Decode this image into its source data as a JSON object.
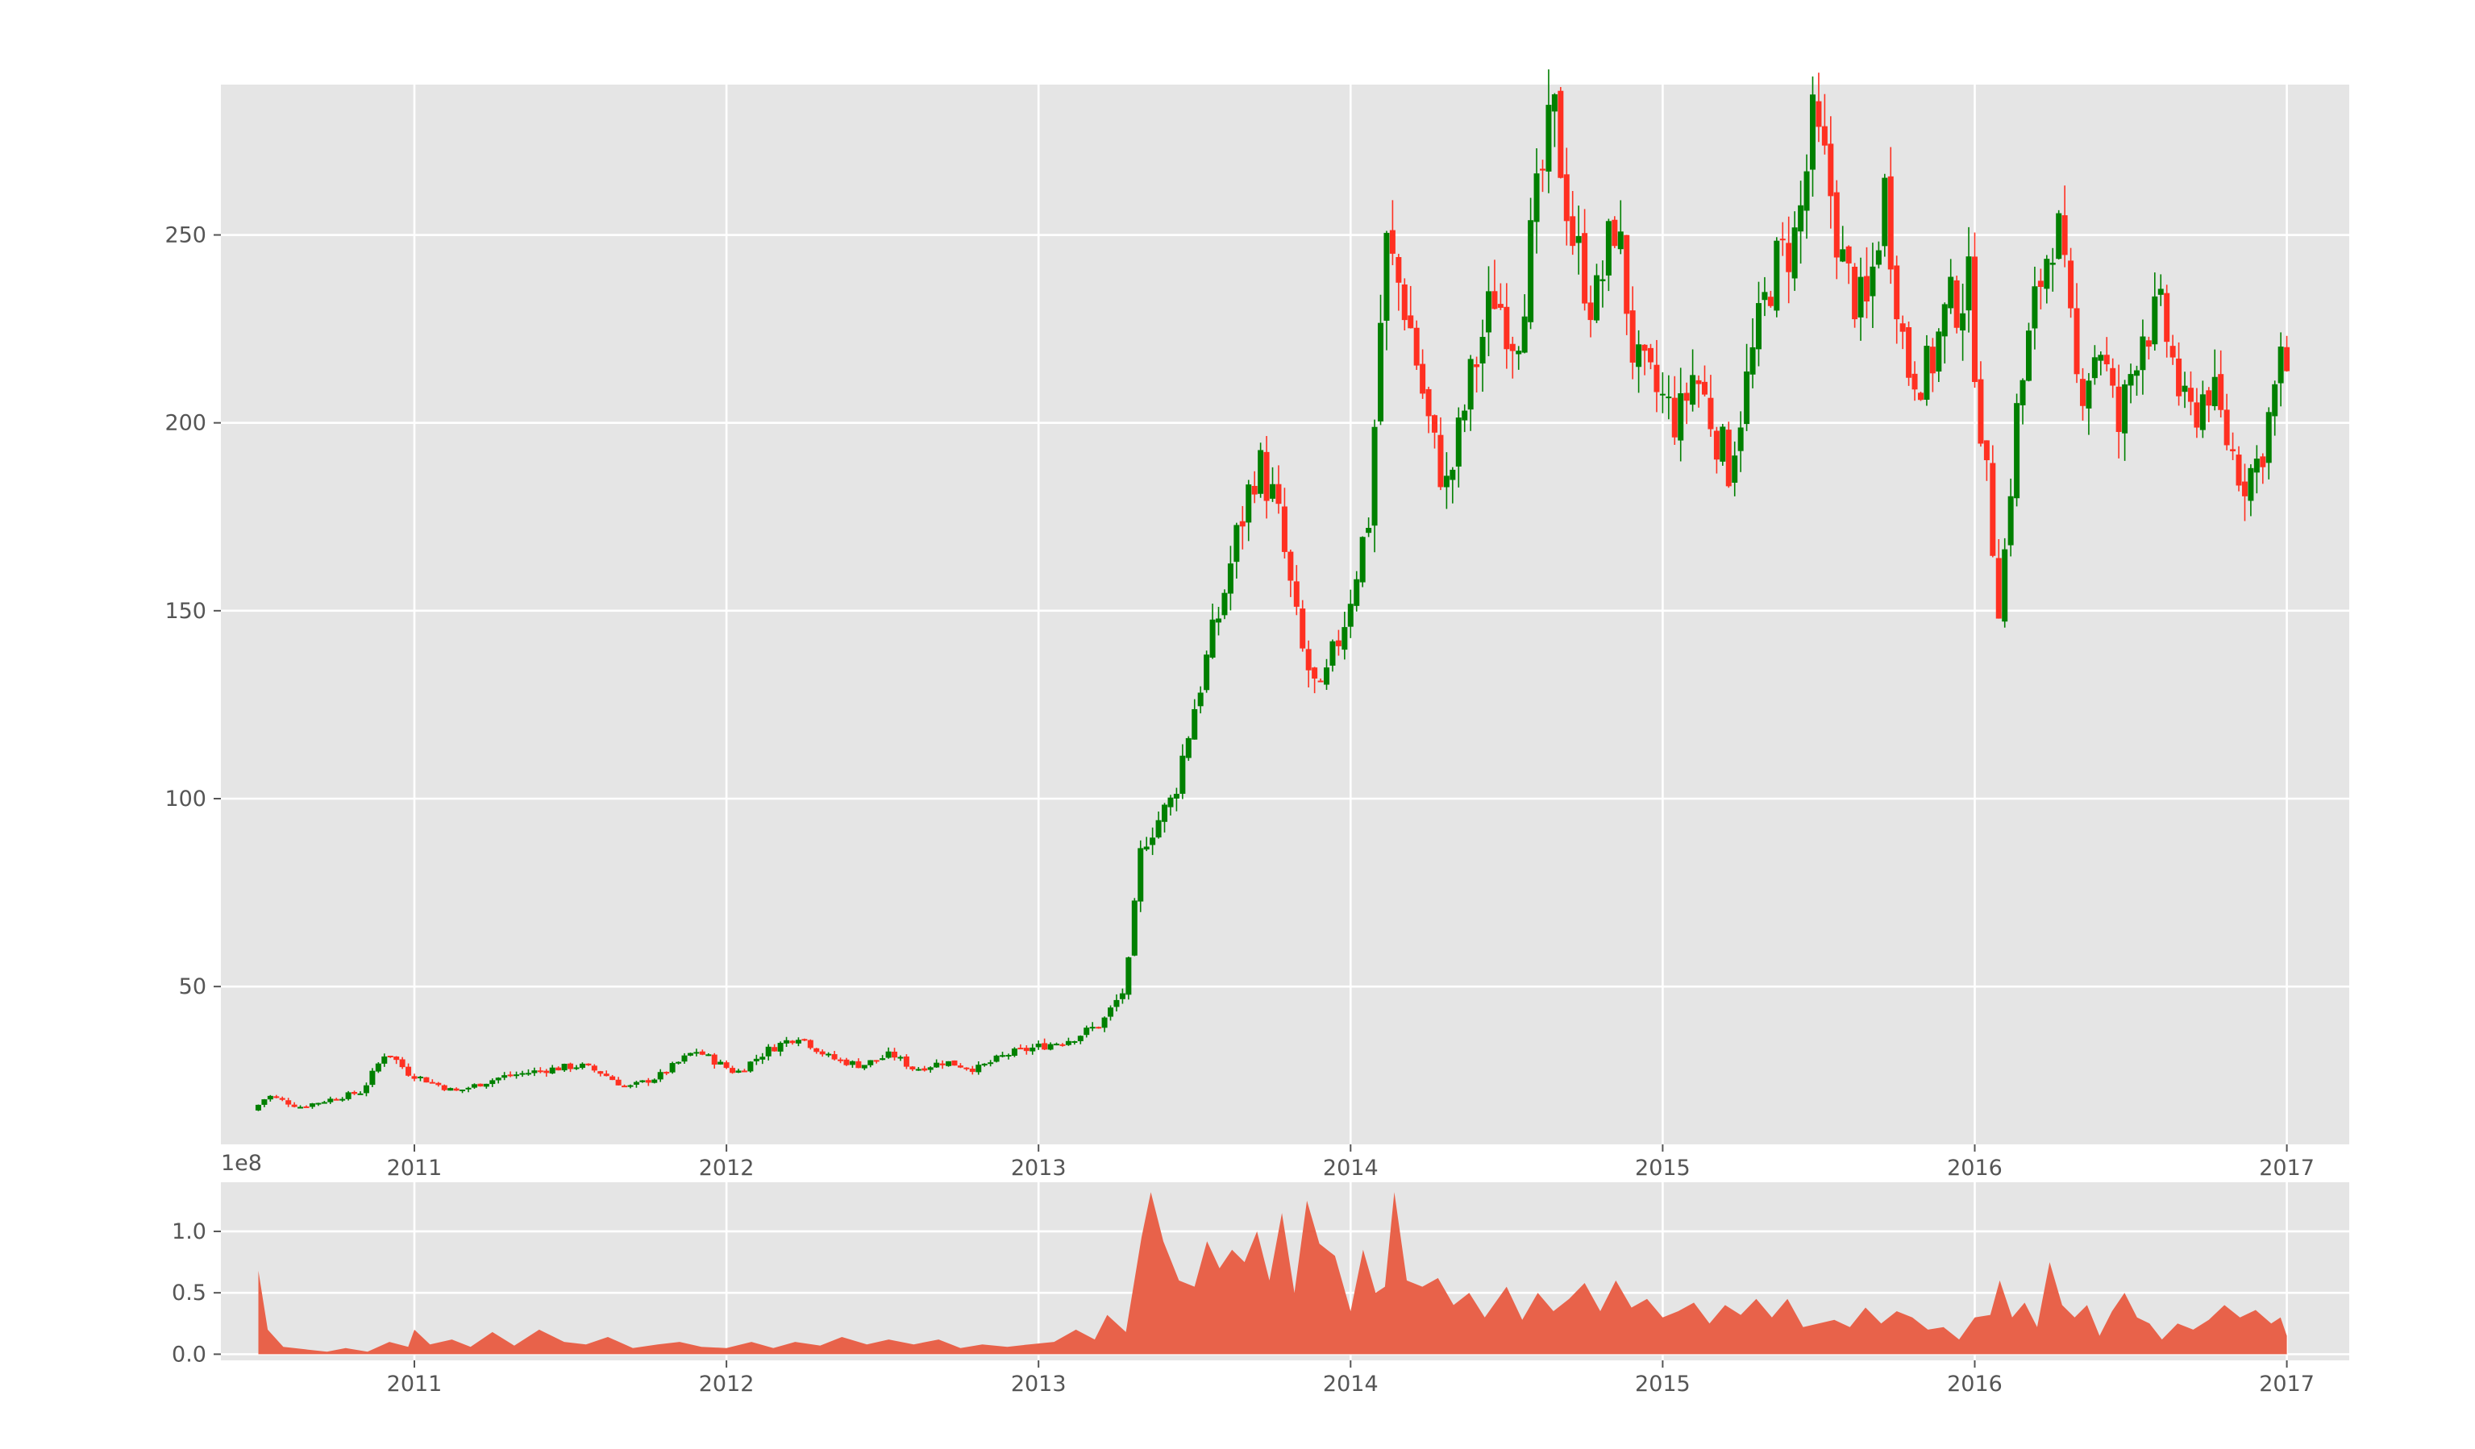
{
  "chart_data": [
    {
      "type": "candlestick",
      "style": "ggplot",
      "grid": true,
      "colors": {
        "up": "#008000",
        "down": "#ff3021",
        "background": "#e5e5e5",
        "grid": "#ffffff"
      },
      "x_ticks": [
        "2011",
        "2012",
        "2013",
        "2014",
        "2015",
        "2016",
        "2017"
      ],
      "x_range": [
        2010.38,
        2017.2
      ],
      "y_ticks": [
        50,
        100,
        150,
        200,
        250
      ],
      "ylim": [
        8,
        290
      ],
      "price_path": [
        [
          2010.5,
          17
        ],
        [
          2010.55,
          21
        ],
        [
          2010.65,
          18
        ],
        [
          2010.75,
          20
        ],
        [
          2010.85,
          22
        ],
        [
          2010.93,
          33
        ],
        [
          2011.0,
          27
        ],
        [
          2011.15,
          22
        ],
        [
          2011.3,
          26
        ],
        [
          2011.45,
          28
        ],
        [
          2011.55,
          29
        ],
        [
          2011.62,
          27
        ],
        [
          2011.7,
          23
        ],
        [
          2011.8,
          26
        ],
        [
          2011.92,
          33
        ],
        [
          2012.05,
          27
        ],
        [
          2012.15,
          33
        ],
        [
          2012.25,
          37
        ],
        [
          2012.35,
          31
        ],
        [
          2012.45,
          29
        ],
        [
          2012.55,
          32
        ],
        [
          2012.62,
          28
        ],
        [
          2012.72,
          30
        ],
        [
          2012.82,
          28
        ],
        [
          2012.92,
          32
        ],
        [
          2013.02,
          34
        ],
        [
          2013.12,
          36
        ],
        [
          2013.22,
          40
        ],
        [
          2013.3,
          50
        ],
        [
          2013.35,
          88
        ],
        [
          2013.45,
          100
        ],
        [
          2013.52,
          125
        ],
        [
          2013.6,
          150
        ],
        [
          2013.65,
          168
        ],
        [
          2013.72,
          190
        ],
        [
          2013.78,
          178
        ],
        [
          2013.86,
          140
        ],
        [
          2013.92,
          126
        ],
        [
          2014.0,
          148
        ],
        [
          2014.08,
          176
        ],
        [
          2014.13,
          248
        ],
        [
          2014.2,
          230
        ],
        [
          2014.28,
          195
        ],
        [
          2014.33,
          182
        ],
        [
          2014.4,
          210
        ],
        [
          2014.48,
          235
        ],
        [
          2014.55,
          222
        ],
        [
          2014.62,
          260
        ],
        [
          2014.67,
          282
        ],
        [
          2014.73,
          250
        ],
        [
          2014.8,
          230
        ],
        [
          2014.87,
          255
        ],
        [
          2014.93,
          215
        ],
        [
          2015.0,
          208
        ],
        [
          2015.07,
          200
        ],
        [
          2015.12,
          214
        ],
        [
          2015.18,
          200
        ],
        [
          2015.23,
          188
        ],
        [
          2015.3,
          215
        ],
        [
          2015.37,
          240
        ],
        [
          2015.45,
          250
        ],
        [
          2015.5,
          278
        ],
        [
          2015.55,
          265
        ],
        [
          2015.6,
          240
        ],
        [
          2015.67,
          228
        ],
        [
          2015.73,
          262
        ],
        [
          2015.8,
          215
        ],
        [
          2015.87,
          213
        ],
        [
          2015.93,
          230
        ],
        [
          2016.0,
          236
        ],
        [
          2016.05,
          190
        ],
        [
          2016.1,
          150
        ],
        [
          2016.15,
          200
        ],
        [
          2016.22,
          235
        ],
        [
          2016.28,
          255
        ],
        [
          2016.35,
          208
        ],
        [
          2016.42,
          222
        ],
        [
          2016.48,
          198
        ],
        [
          2016.55,
          225
        ],
        [
          2016.62,
          228
        ],
        [
          2016.7,
          200
        ],
        [
          2016.77,
          210
        ],
        [
          2016.83,
          195
        ],
        [
          2016.88,
          185
        ],
        [
          2016.93,
          190
        ],
        [
          2017.0,
          215
        ]
      ]
    },
    {
      "type": "area",
      "style": "ggplot",
      "grid": true,
      "color": "#e8624a",
      "offset_label": "1e8",
      "x_ticks": [
        "2011",
        "2012",
        "2013",
        "2014",
        "2015",
        "2016",
        "2017"
      ],
      "x_range": [
        2010.38,
        2017.2
      ],
      "y_ticks": [
        "0.0",
        "0.5",
        "1.0"
      ],
      "ylim": [
        -0.05,
        1.4
      ],
      "values": [
        [
          2010.5,
          0.68
        ],
        [
          2010.53,
          0.2
        ],
        [
          2010.58,
          0.06
        ],
        [
          2010.65,
          0.04
        ],
        [
          2010.72,
          0.02
        ],
        [
          2010.78,
          0.05
        ],
        [
          2010.85,
          0.02
        ],
        [
          2010.92,
          0.1
        ],
        [
          2010.98,
          0.06
        ],
        [
          2011.0,
          0.2
        ],
        [
          2011.05,
          0.08
        ],
        [
          2011.12,
          0.12
        ],
        [
          2011.18,
          0.06
        ],
        [
          2011.25,
          0.18
        ],
        [
          2011.32,
          0.07
        ],
        [
          2011.4,
          0.2
        ],
        [
          2011.48,
          0.1
        ],
        [
          2011.55,
          0.08
        ],
        [
          2011.62,
          0.14
        ],
        [
          2011.7,
          0.05
        ],
        [
          2011.78,
          0.08
        ],
        [
          2011.85,
          0.1
        ],
        [
          2011.92,
          0.06
        ],
        [
          2012.0,
          0.05
        ],
        [
          2012.08,
          0.1
        ],
        [
          2012.15,
          0.05
        ],
        [
          2012.22,
          0.1
        ],
        [
          2012.3,
          0.07
        ],
        [
          2012.37,
          0.14
        ],
        [
          2012.45,
          0.08
        ],
        [
          2012.52,
          0.12
        ],
        [
          2012.6,
          0.08
        ],
        [
          2012.68,
          0.12
        ],
        [
          2012.75,
          0.05
        ],
        [
          2012.82,
          0.08
        ],
        [
          2012.9,
          0.06
        ],
        [
          2012.97,
          0.08
        ],
        [
          2013.05,
          0.1
        ],
        [
          2013.12,
          0.2
        ],
        [
          2013.18,
          0.12
        ],
        [
          2013.22,
          0.32
        ],
        [
          2013.28,
          0.18
        ],
        [
          2013.33,
          0.95
        ],
        [
          2013.36,
          1.32
        ],
        [
          2013.4,
          0.92
        ],
        [
          2013.45,
          0.6
        ],
        [
          2013.5,
          0.55
        ],
        [
          2013.54,
          0.92
        ],
        [
          2013.58,
          0.7
        ],
        [
          2013.62,
          0.85
        ],
        [
          2013.66,
          0.75
        ],
        [
          2013.7,
          1.0
        ],
        [
          2013.74,
          0.6
        ],
        [
          2013.78,
          1.15
        ],
        [
          2013.82,
          0.5
        ],
        [
          2013.86,
          1.25
        ],
        [
          2013.9,
          0.9
        ],
        [
          2013.95,
          0.8
        ],
        [
          2014.0,
          0.35
        ],
        [
          2014.04,
          0.85
        ],
        [
          2014.08,
          0.5
        ],
        [
          2014.11,
          0.55
        ],
        [
          2014.14,
          1.32
        ],
        [
          2014.18,
          0.6
        ],
        [
          2014.23,
          0.55
        ],
        [
          2014.28,
          0.62
        ],
        [
          2014.33,
          0.4
        ],
        [
          2014.38,
          0.5
        ],
        [
          2014.43,
          0.3
        ],
        [
          2014.5,
          0.55
        ],
        [
          2014.55,
          0.28
        ],
        [
          2014.6,
          0.5
        ],
        [
          2014.65,
          0.35
        ],
        [
          2014.7,
          0.45
        ],
        [
          2014.75,
          0.58
        ],
        [
          2014.8,
          0.35
        ],
        [
          2014.85,
          0.6
        ],
        [
          2014.9,
          0.38
        ],
        [
          2014.95,
          0.45
        ],
        [
          2015.0,
          0.3
        ],
        [
          2015.05,
          0.35
        ],
        [
          2015.1,
          0.42
        ],
        [
          2015.15,
          0.25
        ],
        [
          2015.2,
          0.4
        ],
        [
          2015.25,
          0.32
        ],
        [
          2015.3,
          0.45
        ],
        [
          2015.35,
          0.3
        ],
        [
          2015.4,
          0.45
        ],
        [
          2015.45,
          0.22
        ],
        [
          2015.5,
          0.25
        ],
        [
          2015.55,
          0.28
        ],
        [
          2015.6,
          0.22
        ],
        [
          2015.65,
          0.38
        ],
        [
          2015.7,
          0.25
        ],
        [
          2015.75,
          0.35
        ],
        [
          2015.8,
          0.3
        ],
        [
          2015.85,
          0.2
        ],
        [
          2015.9,
          0.22
        ],
        [
          2015.95,
          0.12
        ],
        [
          2016.0,
          0.3
        ],
        [
          2016.05,
          0.32
        ],
        [
          2016.08,
          0.6
        ],
        [
          2016.12,
          0.3
        ],
        [
          2016.16,
          0.42
        ],
        [
          2016.2,
          0.22
        ],
        [
          2016.24,
          0.75
        ],
        [
          2016.28,
          0.4
        ],
        [
          2016.32,
          0.3
        ],
        [
          2016.36,
          0.4
        ],
        [
          2016.4,
          0.15
        ],
        [
          2016.44,
          0.35
        ],
        [
          2016.48,
          0.5
        ],
        [
          2016.52,
          0.3
        ],
        [
          2016.56,
          0.25
        ],
        [
          2016.6,
          0.12
        ],
        [
          2016.65,
          0.25
        ],
        [
          2016.7,
          0.2
        ],
        [
          2016.75,
          0.28
        ],
        [
          2016.8,
          0.4
        ],
        [
          2016.85,
          0.3
        ],
        [
          2016.9,
          0.36
        ],
        [
          2016.95,
          0.25
        ],
        [
          2016.98,
          0.3
        ],
        [
          2017.0,
          0.15
        ]
      ]
    }
  ]
}
